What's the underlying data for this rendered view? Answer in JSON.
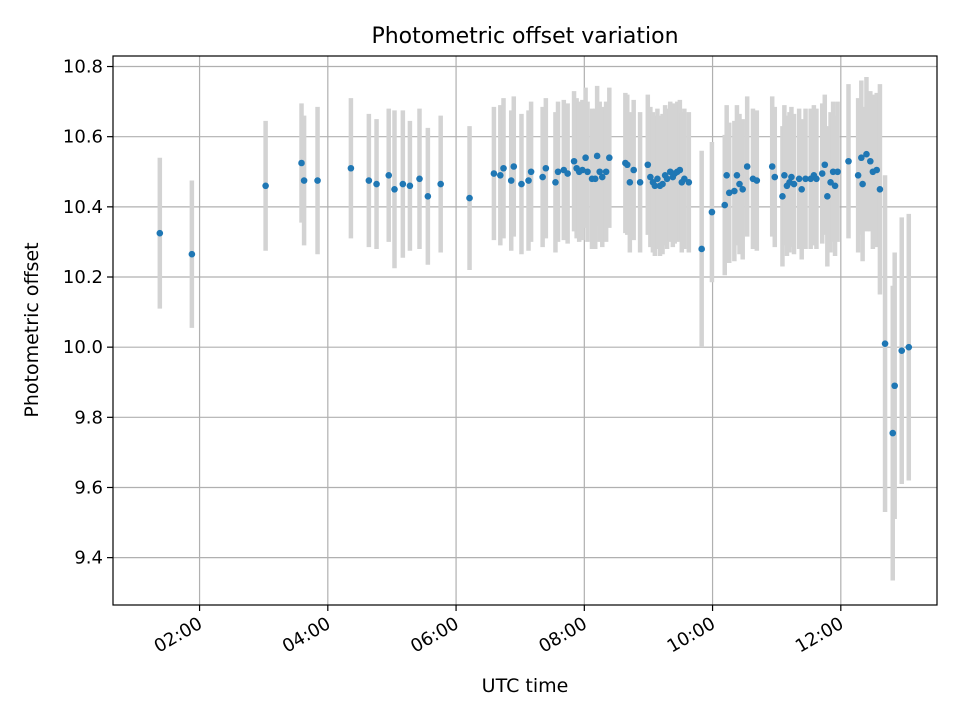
{
  "chart_data": {
    "type": "scatter",
    "title": "Photometric offset variation",
    "xlabel": "UTC time",
    "ylabel": "Photometric offset",
    "xlim_hours": [
      0.65,
      13.5
    ],
    "ylim": [
      9.265,
      10.83
    ],
    "x_tick_hours": [
      2,
      4,
      6,
      8,
      10,
      12
    ],
    "x_tick_labels": [
      "02:00",
      "04:00",
      "06:00",
      "08:00",
      "10:00",
      "12:00"
    ],
    "y_ticks": [
      9.4,
      9.6,
      9.8,
      10.0,
      10.2,
      10.4,
      10.6,
      10.8
    ],
    "y_tick_labels": [
      "9.4",
      "9.6",
      "9.8",
      "10.0",
      "10.2",
      "10.4",
      "10.6",
      "10.8"
    ],
    "grid": true,
    "colors": {
      "point": "#1f77b4",
      "errorbar": "#d3d3d3",
      "grid": "#b0b0b0"
    },
    "series": [
      {
        "x_hours": [
          1.38,
          1.88,
          3.03,
          3.59,
          3.63,
          3.84,
          4.36,
          4.64,
          4.76,
          4.95,
          5.04,
          5.17,
          5.28,
          5.43,
          5.56,
          5.76,
          6.21,
          6.59,
          6.69,
          6.74,
          6.86,
          6.9,
          7.02,
          7.13,
          7.17,
          7.35,
          7.4,
          7.55,
          7.59,
          7.68,
          7.74,
          7.84,
          7.88,
          7.92,
          7.97,
          8.02,
          8.05,
          8.12,
          8.17,
          8.2,
          8.24,
          8.28,
          8.34,
          8.39,
          8.64,
          8.67,
          8.71,
          8.77,
          8.87,
          8.99,
          9.03,
          9.07,
          9.1,
          9.14,
          9.18,
          9.22,
          9.26,
          9.29,
          9.34,
          9.38,
          9.41,
          9.45,
          9.49,
          9.52,
          9.56,
          9.63,
          9.83,
          9.99,
          10.19,
          10.22,
          10.26,
          10.34,
          10.38,
          10.42,
          10.47,
          10.54,
          10.63,
          10.69,
          10.93,
          10.97,
          11.09,
          11.12,
          11.16,
          11.2,
          11.23,
          11.27,
          11.35,
          11.39,
          11.45,
          11.53,
          11.58,
          11.62,
          11.71,
          11.75,
          11.79,
          11.84,
          11.88,
          11.91,
          11.95,
          12.12,
          12.27,
          12.32,
          12.34,
          12.4,
          12.46,
          12.5,
          12.56,
          12.61,
          12.69,
          12.81,
          12.84,
          12.95,
          13.06
        ],
        "y": [
          10.325,
          10.265,
          10.46,
          10.525,
          10.475,
          10.475,
          10.51,
          10.475,
          10.465,
          10.49,
          10.45,
          10.465,
          10.46,
          10.48,
          10.43,
          10.465,
          10.425,
          10.495,
          10.49,
          10.51,
          10.475,
          10.515,
          10.465,
          10.475,
          10.5,
          10.485,
          10.51,
          10.47,
          10.5,
          10.505,
          10.495,
          10.53,
          10.51,
          10.5,
          10.505,
          10.54,
          10.5,
          10.48,
          10.48,
          10.545,
          10.5,
          10.485,
          10.5,
          10.54,
          10.525,
          10.52,
          10.47,
          10.505,
          10.47,
          10.52,
          10.485,
          10.47,
          10.46,
          10.48,
          10.46,
          10.465,
          10.49,
          10.48,
          10.5,
          10.485,
          10.495,
          10.5,
          10.505,
          10.47,
          10.48,
          10.47,
          10.28,
          10.385,
          10.405,
          10.49,
          10.44,
          10.445,
          10.49,
          10.465,
          10.45,
          10.515,
          10.48,
          10.475,
          10.515,
          10.485,
          10.43,
          10.49,
          10.46,
          10.47,
          10.485,
          10.465,
          10.48,
          10.45,
          10.48,
          10.48,
          10.49,
          10.48,
          10.495,
          10.52,
          10.43,
          10.47,
          10.5,
          10.46,
          10.5,
          10.53,
          10.49,
          10.54,
          10.465,
          10.55,
          10.53,
          10.5,
          10.505,
          10.45,
          10.01,
          9.755,
          9.89,
          9.99,
          10.0
        ],
        "err": [
          0.215,
          0.21,
          0.185,
          0.17,
          0.185,
          0.21,
          0.2,
          0.19,
          0.185,
          0.19,
          0.225,
          0.21,
          0.185,
          0.2,
          0.195,
          0.195,
          0.205,
          0.19,
          0.2,
          0.2,
          0.2,
          0.2,
          0.2,
          0.2,
          0.2,
          0.2,
          0.2,
          0.2,
          0.2,
          0.2,
          0.2,
          0.2,
          0.2,
          0.2,
          0.2,
          0.2,
          0.2,
          0.2,
          0.2,
          0.2,
          0.2,
          0.2,
          0.2,
          0.2,
          0.2,
          0.2,
          0.2,
          0.2,
          0.2,
          0.2,
          0.2,
          0.2,
          0.2,
          0.2,
          0.2,
          0.2,
          0.2,
          0.2,
          0.2,
          0.2,
          0.2,
          0.2,
          0.2,
          0.2,
          0.2,
          0.2,
          0.28,
          0.2,
          0.2,
          0.2,
          0.2,
          0.2,
          0.2,
          0.2,
          0.2,
          0.2,
          0.2,
          0.2,
          0.2,
          0.2,
          0.2,
          0.2,
          0.2,
          0.2,
          0.2,
          0.2,
          0.2,
          0.2,
          0.2,
          0.2,
          0.2,
          0.2,
          0.2,
          0.2,
          0.2,
          0.2,
          0.2,
          0.2,
          0.2,
          0.22,
          0.22,
          0.22,
          0.22,
          0.22,
          0.2,
          0.22,
          0.22,
          0.3,
          0.48,
          0.42,
          0.38,
          0.38,
          0.38
        ]
      }
    ]
  }
}
